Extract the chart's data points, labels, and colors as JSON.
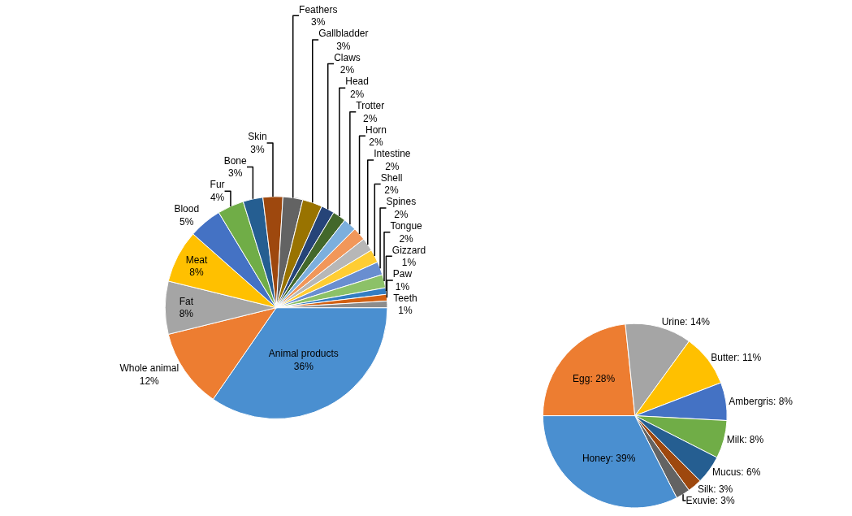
{
  "chart_data": [
    {
      "type": "pie",
      "categories": [
        "Animal products",
        "Whole animal",
        "Fat",
        "Meat",
        "Blood",
        "Fur",
        "Bone",
        "Skin",
        "Feathers",
        "Gallbladder",
        "Claws",
        "Head",
        "Trotter",
        "Horn",
        "Intestine",
        "Shell",
        "Spines",
        "Tongue",
        "Gizzard",
        "Paw",
        "Teeth"
      ],
      "values": [
        36,
        12,
        8,
        8,
        5,
        4,
        3,
        3,
        3,
        3,
        2,
        2,
        2,
        2,
        2,
        2,
        2,
        2,
        1,
        1,
        1
      ],
      "value_labels": [
        "36%",
        "12%",
        "8%",
        "8%",
        "5%",
        "4%",
        "3%",
        "3%",
        "3%",
        "3%",
        "2%",
        "2%",
        "2%",
        "2%",
        "2%",
        "2%",
        "2%",
        "2%",
        "1%",
        "1%",
        "1%"
      ],
      "colors": [
        "#4a8fd0",
        "#ed7d31",
        "#a5a5a5",
        "#ffc000",
        "#4472c4",
        "#70ad47",
        "#255e91",
        "#9e480e",
        "#636363",
        "#997300",
        "#264478",
        "#43682b",
        "#7cafdd",
        "#f1975a",
        "#b7b7b7",
        "#ffcd33",
        "#698ed0",
        "#8cc168",
        "#327dc2",
        "#d26012",
        "#8c8c8c"
      ],
      "legend": false
    },
    {
      "type": "pie",
      "categories": [
        "Egg",
        "Urine",
        "Butter",
        "Ambergris",
        "Milk",
        "Mucus",
        "Silk",
        "Exuvie",
        "Honey"
      ],
      "values": [
        28,
        14,
        11,
        8,
        8,
        6,
        3,
        3,
        39
      ],
      "value_labels": [
        "28%",
        "14%",
        "11%",
        "8%",
        "8%",
        "6%",
        "3%",
        "3%",
        "39%"
      ],
      "colors": [
        "#ed7d31",
        "#a5a5a5",
        "#ffc000",
        "#4472c4",
        "#70ad47",
        "#255e91",
        "#9e480e",
        "#636363",
        "#4a8fd0"
      ],
      "legend": false
    }
  ]
}
